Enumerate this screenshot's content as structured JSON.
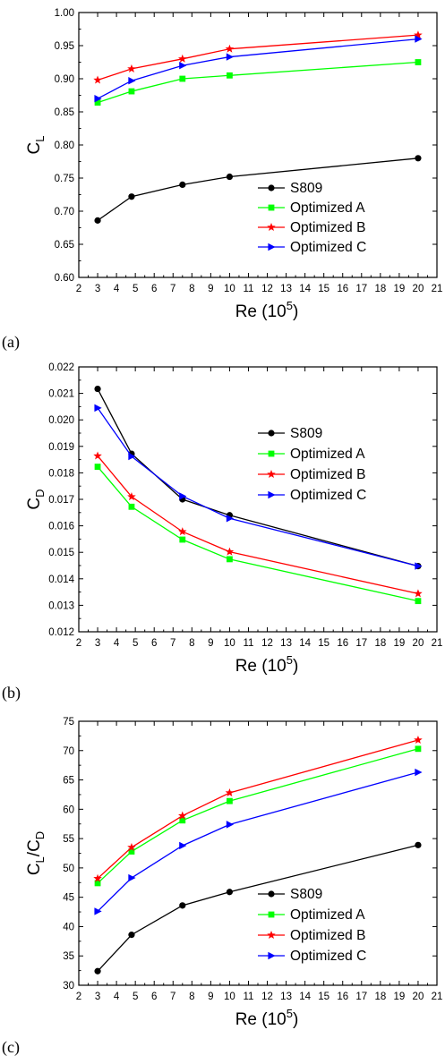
{
  "chart_data": [
    {
      "type": "line",
      "panel_label": "(a)",
      "xlabel": "Re (10",
      "xlabel_sup": "5",
      "xlabel_end": ")",
      "ylabel": "C",
      "ylabel_sub": "L",
      "ylabel_mid": "",
      "ylabel_sub2": "",
      "xlim": [
        2,
        21
      ],
      "ylim": [
        0.6,
        1.0
      ],
      "xticks": [
        "2",
        "3",
        "4",
        "5",
        "6",
        "7",
        "8",
        "9",
        "10",
        "11",
        "12",
        "13",
        "14",
        "15",
        "16",
        "17",
        "18",
        "19",
        "20",
        "21"
      ],
      "yticks": [
        "0.60",
        "0.65",
        "0.70",
        "0.75",
        "0.80",
        "0.85",
        "0.90",
        "0.95",
        "1.00"
      ],
      "grid": false,
      "legend_position": "lower-right",
      "x": [
        3,
        4.8,
        7.5,
        10,
        20
      ],
      "series": [
        {
          "name": "S809",
          "color": "#000000",
          "marker": "circle",
          "values": [
            0.686,
            0.722,
            0.74,
            0.752,
            0.78
          ]
        },
        {
          "name": "Optimized A",
          "color": "#00ff00",
          "marker": "square",
          "values": [
            0.864,
            0.881,
            0.9,
            0.905,
            0.925
          ]
        },
        {
          "name": "Optimized B",
          "color": "#ff0000",
          "marker": "star",
          "values": [
            0.898,
            0.915,
            0.93,
            0.945,
            0.966
          ]
        },
        {
          "name": "Optimized C",
          "color": "#0000ff",
          "marker": "triangle-right",
          "values": [
            0.87,
            0.897,
            0.92,
            0.933,
            0.96
          ]
        }
      ]
    },
    {
      "type": "line",
      "panel_label": "(b)",
      "xlabel": "Re (10",
      "xlabel_sup": "5",
      "xlabel_end": ")",
      "ylabel": "C",
      "ylabel_sub": "D",
      "ylabel_mid": "",
      "ylabel_sub2": "",
      "xlim": [
        2,
        21
      ],
      "ylim": [
        0.012,
        0.022
      ],
      "xticks": [
        "2",
        "3",
        "4",
        "5",
        "6",
        "7",
        "8",
        "9",
        "10",
        "11",
        "12",
        "13",
        "14",
        "15",
        "16",
        "17",
        "18",
        "19",
        "20",
        "21"
      ],
      "yticks": [
        "0.012",
        "0.013",
        "0.014",
        "0.015",
        "0.016",
        "0.017",
        "0.018",
        "0.019",
        "0.020",
        "0.021",
        "0.022"
      ],
      "grid": false,
      "legend_position": "top-right",
      "x": [
        3,
        4.8,
        7.5,
        10,
        20
      ],
      "series": [
        {
          "name": "S809",
          "color": "#000000",
          "marker": "circle",
          "values": [
            0.02117,
            0.01872,
            0.017,
            0.0164,
            0.01448
          ]
        },
        {
          "name": "Optimized A",
          "color": "#00ff00",
          "marker": "square",
          "values": [
            0.01823,
            0.01672,
            0.01548,
            0.01474,
            0.01316
          ]
        },
        {
          "name": "Optimized B",
          "color": "#ff0000",
          "marker": "star",
          "values": [
            0.01864,
            0.0171,
            0.01578,
            0.01502,
            0.01344
          ]
        },
        {
          "name": "Optimized C",
          "color": "#0000ff",
          "marker": "triangle-right",
          "values": [
            0.02045,
            0.01862,
            0.01712,
            0.01628,
            0.01448
          ]
        }
      ]
    },
    {
      "type": "line",
      "panel_label": "(c)",
      "xlabel": "Re (10",
      "xlabel_sup": "5",
      "xlabel_end": ")",
      "ylabel": "C",
      "ylabel_sub": "L",
      "ylabel_mid": "/C",
      "ylabel_sub2": "D",
      "xlim": [
        2,
        21
      ],
      "ylim": [
        30,
        75
      ],
      "xticks": [
        "2",
        "3",
        "4",
        "5",
        "6",
        "7",
        "8",
        "9",
        "10",
        "11",
        "12",
        "13",
        "14",
        "15",
        "16",
        "17",
        "18",
        "19",
        "20",
        "21"
      ],
      "yticks": [
        "30",
        "35",
        "40",
        "45",
        "50",
        "55",
        "60",
        "65",
        "70",
        "75"
      ],
      "grid": false,
      "legend_position": "lower-right",
      "x": [
        3,
        4.8,
        7.5,
        10,
        20
      ],
      "series": [
        {
          "name": "S809",
          "color": "#000000",
          "marker": "circle",
          "values": [
            32.4,
            38.6,
            43.6,
            45.9,
            53.9
          ]
        },
        {
          "name": "Optimized A",
          "color": "#00ff00",
          "marker": "square",
          "values": [
            47.4,
            52.8,
            58.1,
            61.4,
            70.3
          ]
        },
        {
          "name": "Optimized B",
          "color": "#ff0000",
          "marker": "star",
          "values": [
            48.2,
            53.5,
            58.9,
            62.8,
            71.8
          ]
        },
        {
          "name": "Optimized C",
          "color": "#0000ff",
          "marker": "triangle-right",
          "values": [
            42.6,
            48.3,
            53.8,
            57.4,
            66.3
          ]
        }
      ]
    }
  ]
}
